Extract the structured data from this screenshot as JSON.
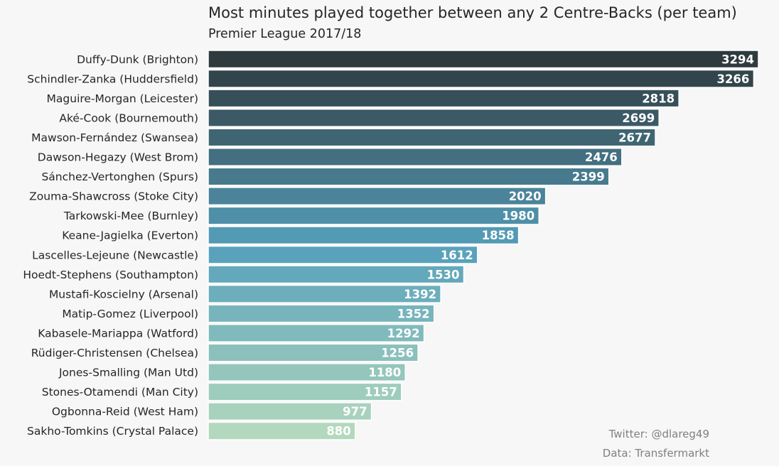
{
  "chart_data": {
    "type": "bar",
    "orientation": "horizontal",
    "title": "Most minutes played together between any 2 Centre-Backs (per team)",
    "subtitle": "Premier League 2017/18",
    "categories": [
      "Duffy-Dunk (Brighton)",
      "Schindler-Zanka (Huddersfield)",
      "Maguire-Morgan (Leicester)",
      "Aké-Cook (Bournemouth)",
      "Mawson-Fernández (Swansea)",
      "Dawson-Hegazy (West Brom)",
      "Sánchez-Vertonghen (Spurs)",
      "Zouma-Shawcross (Stoke City)",
      "Tarkowski-Mee (Burnley)",
      "Keane-Jagielka (Everton)",
      "Lascelles-Lejeune (Newcastle)",
      "Hoedt-Stephens (Southampton)",
      "Mustafi-Koscielny (Arsenal)",
      "Matip-Gomez (Liverpool)",
      "Kabasele-Mariappa (Watford)",
      "Rüdiger-Christensen (Chelsea)",
      "Jones-Smalling (Man Utd)",
      "Stones-Otamendi (Man City)",
      "Ogbonna-Reid (West Ham)",
      "Sakho-Tomkins (Crystal Palace)"
    ],
    "values": [
      3294,
      3266,
      2818,
      2699,
      2677,
      2476,
      2399,
      2020,
      1980,
      1858,
      1612,
      1530,
      1392,
      1352,
      1292,
      1256,
      1180,
      1157,
      977,
      880
    ],
    "xlim": [
      0,
      3294
    ],
    "grid": false,
    "color_start": "#2f3a3f",
    "color_mid": "#559fbb",
    "color_end": "#b2d8bd"
  },
  "credits": {
    "twitter": "Twitter: @dlareg49",
    "data": "Data: Transfermarkt"
  }
}
